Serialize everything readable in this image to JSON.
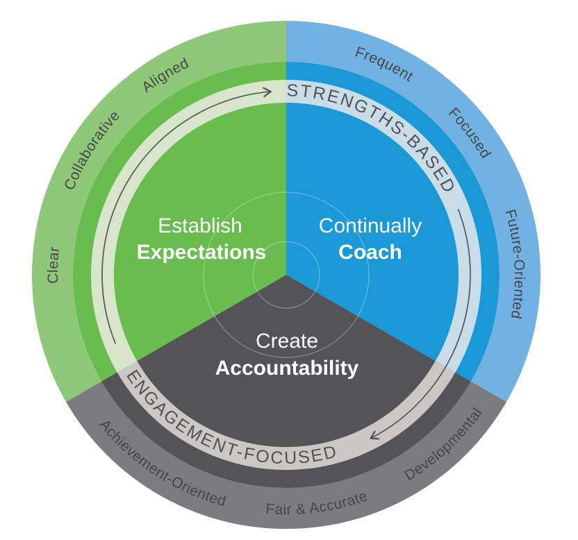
{
  "wheel": {
    "segments": [
      {
        "name": "Establish Expectations",
        "line1": "Establish",
        "line2": "Expectations",
        "outer_words": [
          "Clear",
          "Collaborative",
          "Aligned"
        ]
      },
      {
        "name": "Continually Coach",
        "line1": "Continually",
        "line2": "Coach",
        "outer_words": [
          "Frequent",
          "Focused",
          "Future-Oriented"
        ]
      },
      {
        "name": "Create Accountability",
        "line1": "Create",
        "line2": "Accountability",
        "outer_words": [
          "Achievement-Oriented",
          "Fair & Accurate",
          "Developmental"
        ]
      }
    ],
    "band_labels": [
      "STRENGTHS-BASED",
      "ENGAGEMENT-FOCUSED"
    ],
    "colors": {
      "green": "#68bd4e",
      "green_light": "#8ec878",
      "green_pale": "#d7e6ca",
      "blue": "#1b99d6",
      "blue_light": "#72b2e3",
      "blue_pale": "#c9dde9",
      "dark": "#545356",
      "gray_ring": "#7c7b7e",
      "gray_pale": "#c9c8c5",
      "outer_text": "#46464a",
      "band_text": "#515156",
      "arrow": "#55555a",
      "center_text": "#ffffff"
    }
  }
}
